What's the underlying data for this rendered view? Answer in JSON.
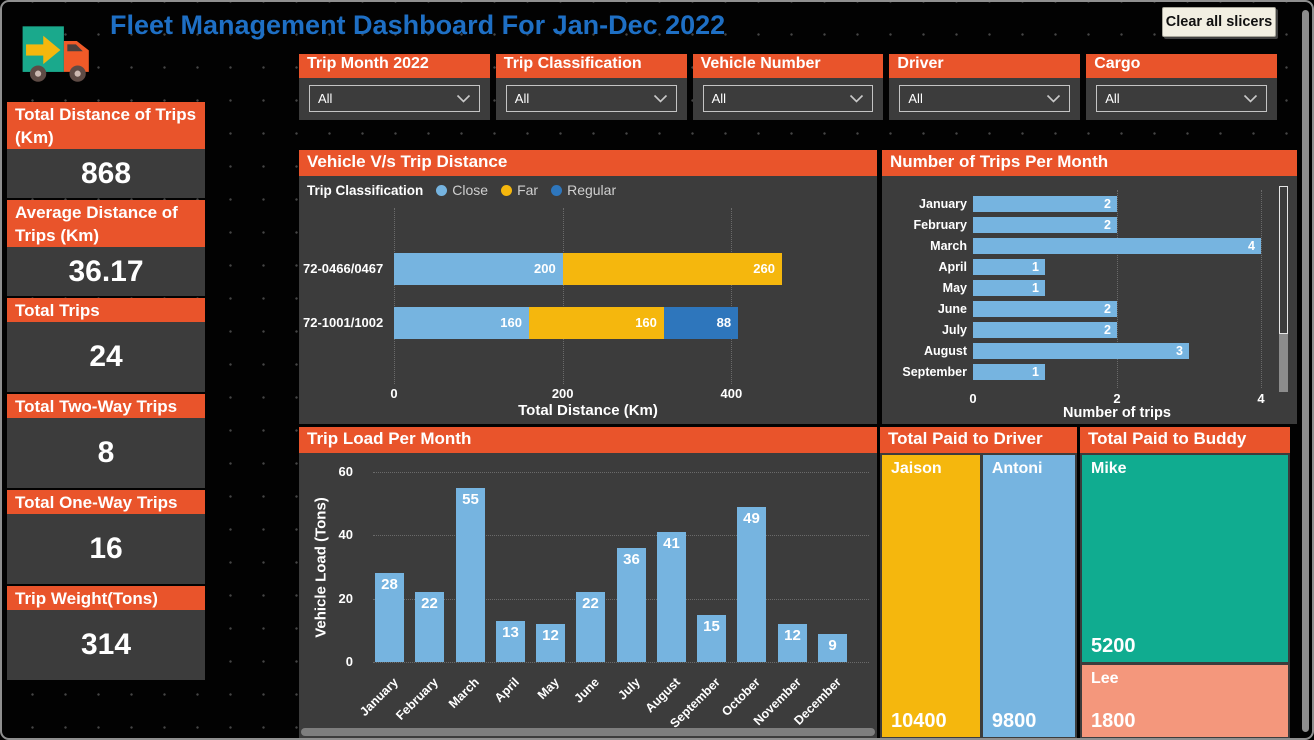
{
  "header": {
    "title": "Fleet Management Dashboard For Jan-Dec 2022",
    "clear_slicers_label": "Clear all slicers",
    "logo_icon": "truck-icon"
  },
  "slicers": [
    {
      "label": "Trip Month 2022",
      "value": "All"
    },
    {
      "label": "Trip Classification",
      "value": "All"
    },
    {
      "label": "Vehicle Number",
      "value": "All"
    },
    {
      "label": "Driver",
      "value": "All"
    },
    {
      "label": "Cargo",
      "value": "All"
    }
  ],
  "kpis": [
    {
      "label": "Total Distance of Trips (Km)",
      "value": "868"
    },
    {
      "label": "Average Distance of Trips (Km)",
      "value": "36.17"
    },
    {
      "label": "Total Trips",
      "value": "24"
    },
    {
      "label": "Total Two-Way Trips",
      "value": "8"
    },
    {
      "label": "Total One-Way Trips",
      "value": "16"
    },
    {
      "label": "Trip Weight(Tons)",
      "value": "314"
    }
  ],
  "colors": {
    "accent_orange": "#E9542B",
    "panel_gray": "#3C3C3C",
    "title_blue": "#1E6FC4",
    "bar_blue": "#76B4E0",
    "bar_yellow": "#F5B70D",
    "bar_dark_blue": "#2E76BC",
    "treemap_teal": "#10AC90",
    "treemap_salmon": "#F4977C",
    "button_cream": "#F2EFE2"
  },
  "chart_data": [
    {
      "id": "vehicle_vs_trip_distance",
      "type": "bar",
      "orientation": "horizontal-stacked",
      "title": "Vehicle V/s Trip Distance",
      "legend_title": "Trip Classification",
      "legend_position": "top",
      "categories": [
        "72-0466/0467",
        "72-1001/1002"
      ],
      "series": [
        {
          "name": "Close",
          "color": "#76B4E0",
          "values": [
            200,
            160
          ]
        },
        {
          "name": "Far",
          "color": "#F5B70D",
          "values": [
            260,
            160
          ]
        },
        {
          "name": "Regular",
          "color": "#2E76BC",
          "values": [
            0,
            88
          ]
        }
      ],
      "xlabel": "Total Distance (Km)",
      "x_ticks": [
        0,
        200,
        400
      ],
      "xlim": [
        0,
        460
      ],
      "grid": "vertical-dotted"
    },
    {
      "id": "trips_per_month",
      "type": "bar",
      "orientation": "horizontal",
      "title": "Number of Trips Per Month",
      "categories": [
        "January",
        "February",
        "March",
        "April",
        "May",
        "June",
        "July",
        "August",
        "September"
      ],
      "values": [
        2,
        2,
        4,
        1,
        1,
        2,
        2,
        3,
        1
      ],
      "bar_color": "#76B4E0",
      "xlabel": "Number of trips",
      "x_ticks": [
        0,
        2,
        4
      ],
      "xlim": [
        0,
        4
      ],
      "grid": "vertical-dotted",
      "scrollbar": "vertical"
    },
    {
      "id": "trip_load_per_month",
      "type": "bar",
      "orientation": "vertical",
      "title": "Trip Load Per Month",
      "categories": [
        "January",
        "February",
        "March",
        "April",
        "May",
        "June",
        "July",
        "August",
        "September",
        "October",
        "November",
        "December"
      ],
      "values": [
        28,
        22,
        55,
        13,
        12,
        22,
        36,
        41,
        15,
        49,
        12,
        9
      ],
      "bar_color": "#76B4E0",
      "ylabel": "Vehicle Load (Tons)",
      "y_ticks": [
        0,
        20,
        40,
        60
      ],
      "ylim": [
        0,
        60
      ],
      "grid": "horizontal-dotted",
      "scrollbar": "horizontal"
    },
    {
      "id": "total_paid_to_driver",
      "type": "treemap",
      "title": "Total Paid to Driver",
      "layout": "columns",
      "items": [
        {
          "name": "Jaison",
          "value": 10400,
          "color": "#F5B70D"
        },
        {
          "name": "Antoni",
          "value": 9800,
          "color": "#76B4E0"
        }
      ]
    },
    {
      "id": "total_paid_to_buddy",
      "type": "treemap",
      "title": "Total Paid to Buddy",
      "layout": "rows",
      "items": [
        {
          "name": "Mike",
          "value": 5200,
          "color": "#10AC90"
        },
        {
          "name": "Lee",
          "value": 1800,
          "color": "#F4977C"
        }
      ]
    }
  ]
}
